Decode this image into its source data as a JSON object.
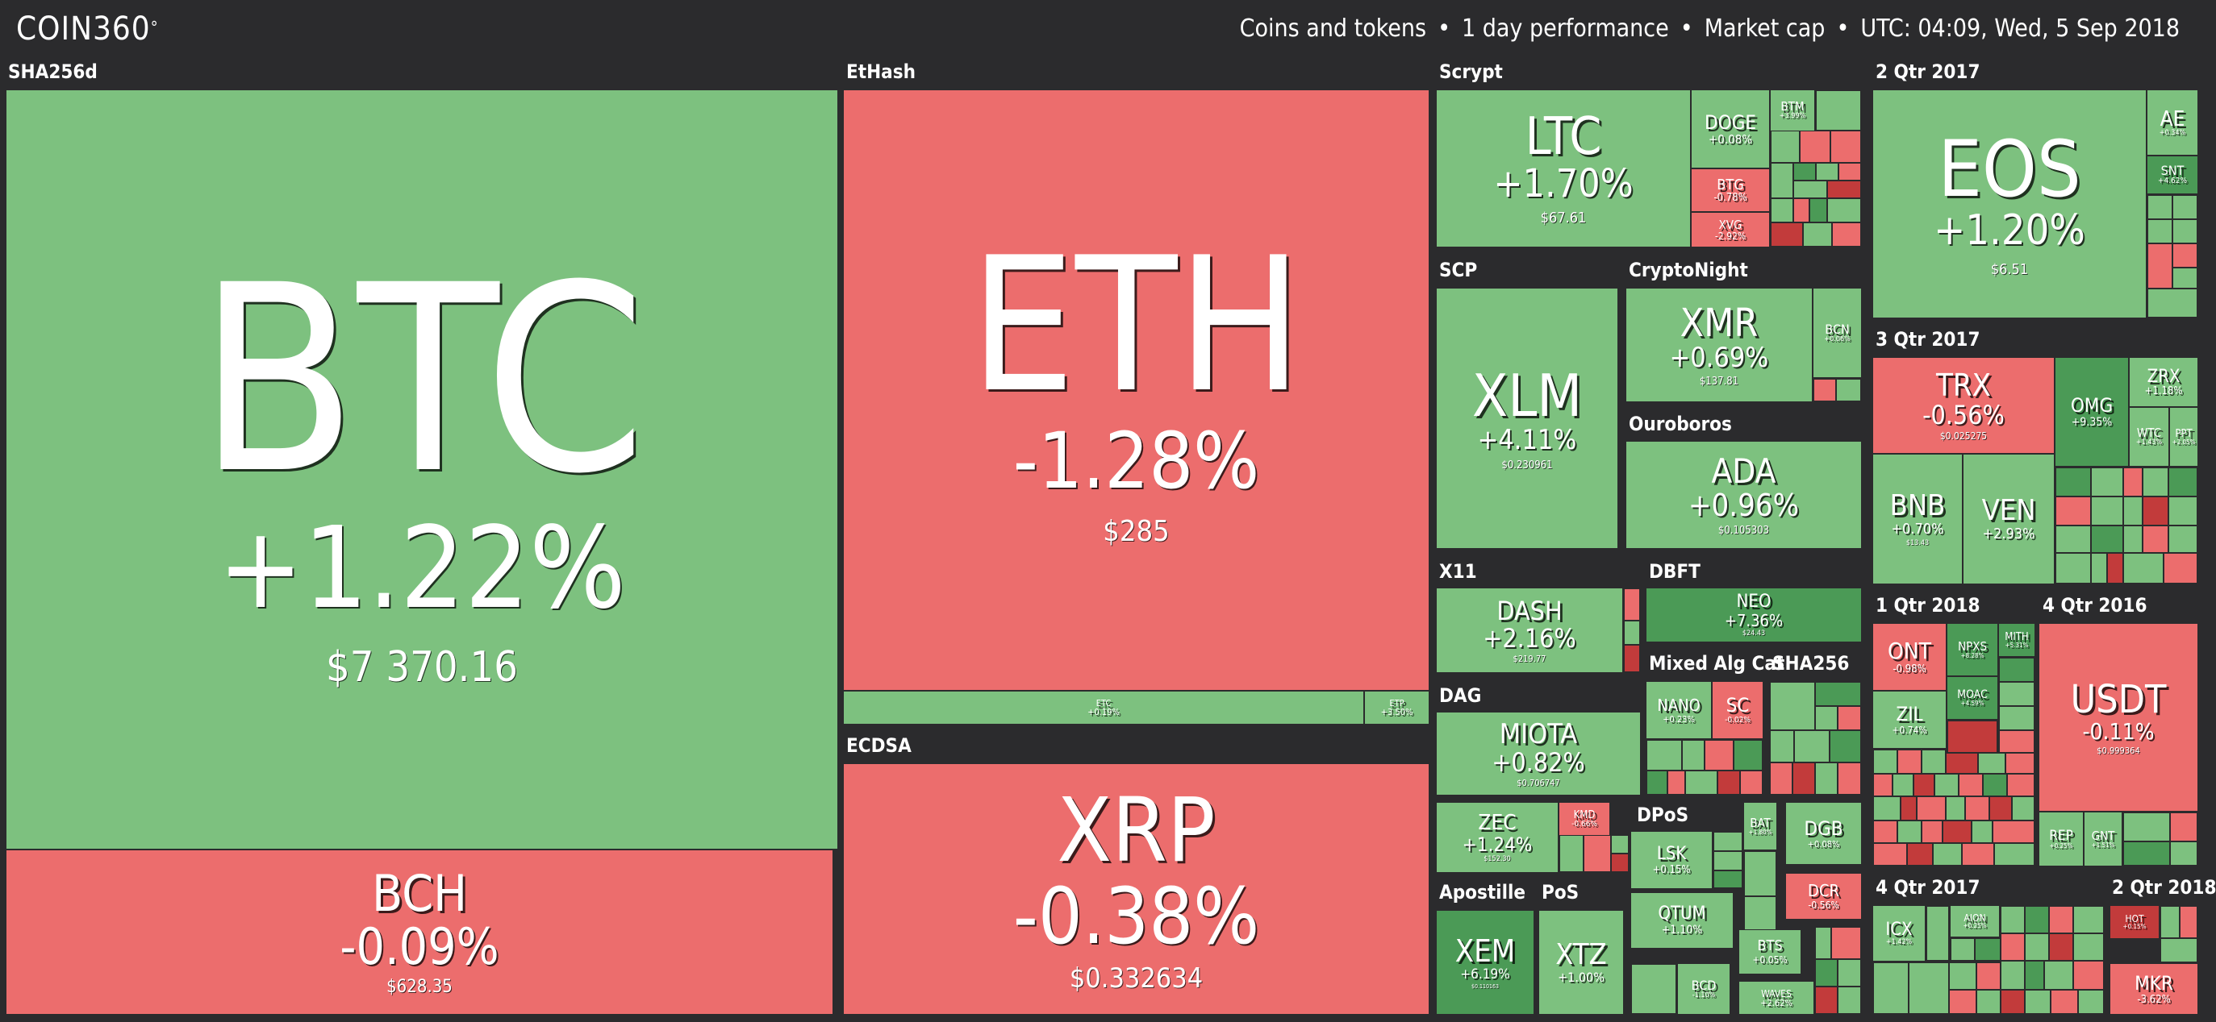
{
  "app": {
    "logo": "COIN360",
    "logo_mark": "°"
  },
  "header": {
    "coins": "Coins and tokens",
    "period": "1 day performance",
    "metric": "Market cap",
    "time": "UTC: 04:09, Wed, 5 Sep 2018",
    "separator": "•"
  },
  "sections": {
    "sha256d": "SHA256d",
    "ethash": "EtHash",
    "scrypt": "Scrypt",
    "q2_2017_top": "2 Qtr 2017",
    "scp": "SCP",
    "cryptonight": "CryptoNight",
    "q3_2017": "3 Qtr 2017",
    "ouroboros": "Ouroboros",
    "ecdsa": "ECDSA",
    "x11": "X11",
    "dbft": "DBFT",
    "q1_2018": "1 Qtr 2018",
    "q4_2016": "4 Qtr 2016",
    "mixed": "Mixed Alg Cat",
    "sha256": "SHA256",
    "dag": "DAG",
    "dpos": "DPoS",
    "apostille": "Apostille",
    "pos": "PoS",
    "q4_2017": "4 Qtr 2017",
    "q2_2018": "2 Qtr 2018"
  },
  "coins": {
    "btc": {
      "sym": "BTC",
      "chg": "+1.22%",
      "price": "$7 370.16"
    },
    "bch": {
      "sym": "BCH",
      "chg": "-0.09%",
      "price": "$628.35"
    },
    "eth": {
      "sym": "ETH",
      "chg": "-1.28%",
      "price": "$285"
    },
    "etc": {
      "sym": "ETC",
      "chg": "+0.19%"
    },
    "etp": {
      "sym": "ETP",
      "chg": "+3.50%"
    },
    "xrp": {
      "sym": "XRP",
      "chg": "-0.38%",
      "price": "$0.332634"
    },
    "ltc": {
      "sym": "LTC",
      "chg": "+1.70%",
      "price": "$67.61"
    },
    "doge": {
      "sym": "DOGE",
      "chg": "+0.08%"
    },
    "btm": {
      "sym": "BTM",
      "chg": "+3.99%"
    },
    "btg": {
      "sym": "BTG",
      "chg": "-0.78%"
    },
    "xvg": {
      "sym": "XVG",
      "chg": "-2.92%"
    },
    "eos": {
      "sym": "EOS",
      "chg": "+1.20%",
      "price": "$6.51"
    },
    "ae": {
      "sym": "AE",
      "chg": "+0.34%"
    },
    "snt": {
      "sym": "SNT",
      "chg": "+4.62%"
    },
    "xlm": {
      "sym": "XLM",
      "chg": "+4.11%",
      "price": "$0.230961"
    },
    "xmr": {
      "sym": "XMR",
      "chg": "+0.69%",
      "price": "$137.81"
    },
    "bcn": {
      "sym": "BCN",
      "chg": "+0.06%"
    },
    "trx": {
      "sym": "TRX",
      "chg": "-0.56%",
      "price": "$0.025275"
    },
    "omg": {
      "sym": "OMG",
      "chg": "+9.35%"
    },
    "zrx": {
      "sym": "ZRX",
      "chg": "+1.18%"
    },
    "wtc": {
      "sym": "WTC",
      "chg": "+1.43%"
    },
    "ppt": {
      "sym": "PPT",
      "chg": "+2.05%"
    },
    "ada": {
      "sym": "ADA",
      "chg": "+0.96%",
      "price": "$0.105303"
    },
    "bnb": {
      "sym": "BNB",
      "chg": "+0.70%",
      "price": "$13.43"
    },
    "ven": {
      "sym": "VEN",
      "chg": "+2.93%"
    },
    "dash": {
      "sym": "DASH",
      "chg": "+2.16%",
      "price": "$219.77"
    },
    "neo": {
      "sym": "NEO",
      "chg": "+7.36%",
      "price": "$24.43"
    },
    "miota": {
      "sym": "MIOTA",
      "chg": "+0.82%",
      "price": "$0.706747"
    },
    "nano": {
      "sym": "NANO",
      "chg": "+0.23%"
    },
    "sc": {
      "sym": "SC",
      "chg": "-0.02%"
    },
    "zec": {
      "sym": "ZEC",
      "chg": "+1.24%",
      "price": "$152.30"
    },
    "kmd": {
      "sym": "KMD",
      "chg": "-0.66%"
    },
    "lsk": {
      "sym": "LSK",
      "chg": "+0.15%"
    },
    "bat": {
      "sym": "BAT",
      "chg": "+1.80%"
    },
    "dgb": {
      "sym": "DGB",
      "chg": "+0.08%"
    },
    "dcr": {
      "sym": "DCR",
      "chg": "-0.56%"
    },
    "qtum": {
      "sym": "QTUM",
      "chg": "+1.10%"
    },
    "bts": {
      "sym": "BTS",
      "chg": "+0.05%"
    },
    "waves": {
      "sym": "WAVES",
      "chg": "+2.62%"
    },
    "bcd": {
      "sym": "BCD",
      "chg": "-1.10%"
    },
    "xem": {
      "sym": "XEM",
      "chg": "+6.19%",
      "price": "$0.110163"
    },
    "xtz": {
      "sym": "XTZ",
      "chg": "+1.00%"
    },
    "ont": {
      "sym": "ONT",
      "chg": "-0.98%"
    },
    "zil": {
      "sym": "ZIL",
      "chg": "+0.74%"
    },
    "npxs": {
      "sym": "NPXS",
      "chg": "+8.28%"
    },
    "mith": {
      "sym": "MITH",
      "chg": "+5.31%"
    },
    "moac": {
      "sym": "MOAC",
      "chg": "+4.59%"
    },
    "usdt": {
      "sym": "USDT",
      "chg": "-0.11%",
      "price": "$0.999364"
    },
    "rep": {
      "sym": "REP",
      "chg": "+0.25%"
    },
    "gnt": {
      "sym": "GNT",
      "chg": "+1.51%"
    },
    "icx": {
      "sym": "ICX",
      "chg": "+1.42%"
    },
    "aion": {
      "sym": "AION",
      "chg": "+0.25%"
    },
    "hot": {
      "sym": "HOT",
      "chg": "+0.15%"
    },
    "mkr": {
      "sym": "MKR",
      "chg": "-3.62%"
    }
  }
}
